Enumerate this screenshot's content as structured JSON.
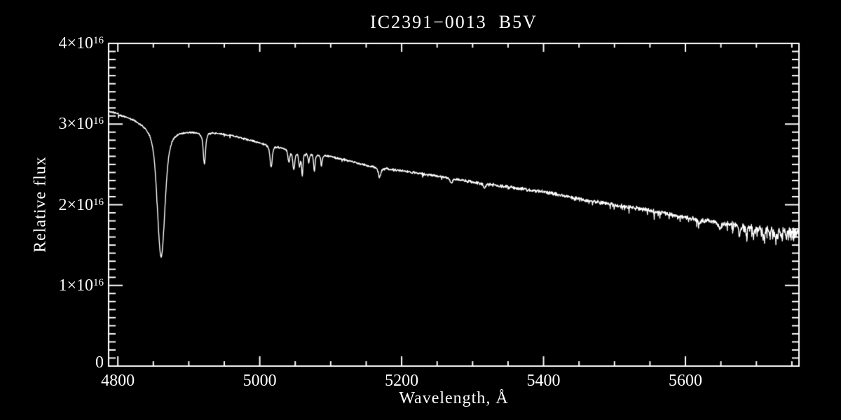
{
  "window": {
    "background": "#000000",
    "foreground": "#ffffff"
  },
  "chart_data": {
    "type": "line",
    "title": "IC2391−0013  B5V",
    "xlabel": "Wavelength, Å",
    "ylabel": "Relative flux",
    "legend": null,
    "grid": false,
    "background": "#000000",
    "line_color": "#ffffff",
    "axis_color": "#ffffff",
    "x_range": [
      4787,
      5760
    ],
    "y_range": [
      0,
      4e+16
    ],
    "x_major_ticks": [
      4800,
      5000,
      5200,
      5400,
      5600
    ],
    "x_tick_labels": [
      "4800",
      "5000",
      "5200",
      "5400",
      "5600"
    ],
    "x_minor_tick_step": 50,
    "y_major_tick_step": 1e+16,
    "y_minor_tick_step": 1000000000000000.0,
    "y_tick_labels": [
      {
        "value": 4e+16,
        "mantissa": "4×10",
        "exponent": "16"
      },
      {
        "value": 3e+16,
        "mantissa": "3×10",
        "exponent": "16"
      },
      {
        "value": 2e+16,
        "mantissa": "2×10",
        "exponent": "16"
      },
      {
        "value": 1e+16,
        "mantissa": "1×10",
        "exponent": "16"
      },
      {
        "value": 0,
        "mantissa": "0",
        "exponent": ""
      }
    ],
    "flux_scale": 1e+16,
    "sampled_points": [
      [
        4790,
        3.15
      ],
      [
        4820,
        3.07
      ],
      [
        4841,
        2.86
      ],
      [
        4851,
        2.43
      ],
      [
        4861,
        1.35
      ],
      [
        4871,
        2.45
      ],
      [
        4886,
        2.87
      ],
      [
        4900,
        2.93
      ],
      [
        4922,
        2.52
      ],
      [
        4950,
        2.87
      ],
      [
        5000,
        2.77
      ],
      [
        5016,
        2.48
      ],
      [
        5048,
        2.44
      ],
      [
        5060,
        2.38
      ],
      [
        5100,
        2.6
      ],
      [
        5169,
        2.38
      ],
      [
        5200,
        2.42
      ],
      [
        5300,
        2.28
      ],
      [
        5400,
        2.16
      ],
      [
        5460,
        2.05
      ],
      [
        5500,
        2.0
      ],
      [
        5600,
        1.84
      ],
      [
        5676,
        1.62
      ],
      [
        5700,
        1.72
      ],
      [
        5760,
        1.69
      ]
    ],
    "series": [
      {
        "name": "spectrum",
        "continuum": [
          [
            4787,
            3.16
          ],
          [
            4800,
            3.13
          ],
          [
            4815,
            3.1
          ],
          [
            4840,
            3.03
          ],
          [
            4870,
            2.97
          ],
          [
            4900,
            2.93
          ],
          [
            4930,
            2.9
          ],
          [
            4960,
            2.86
          ],
          [
            5000,
            2.77
          ],
          [
            5050,
            2.68
          ],
          [
            5100,
            2.6
          ],
          [
            5150,
            2.49
          ],
          [
            5200,
            2.42
          ],
          [
            5250,
            2.36
          ],
          [
            5300,
            2.28
          ],
          [
            5350,
            2.22
          ],
          [
            5400,
            2.16
          ],
          [
            5450,
            2.07
          ],
          [
            5500,
            2.0
          ],
          [
            5550,
            1.93
          ],
          [
            5600,
            1.84
          ],
          [
            5650,
            1.78
          ],
          [
            5700,
            1.73
          ],
          [
            5760,
            1.69
          ]
        ],
        "absorption_lines": [
          {
            "center": 4861,
            "depth": 1.63,
            "sigma": 5.0,
            "gamma": 8.0
          },
          {
            "center": 4922,
            "depth": 0.4,
            "sigma": 1.4,
            "gamma": 2.5
          },
          {
            "center": 5016,
            "depth": 0.27,
            "sigma": 1.4,
            "gamma": 2.5
          },
          {
            "center": 5041,
            "depth": 0.16,
            "sigma": 1.1,
            "gamma": 2.0
          },
          {
            "center": 5048,
            "depth": 0.24,
            "sigma": 1.2,
            "gamma": 2.2
          },
          {
            "center": 5056,
            "depth": 0.17,
            "sigma": 1.0,
            "gamma": 1.8
          },
          {
            "center": 5060,
            "depth": 0.28,
            "sigma": 0.9,
            "gamma": 1.6
          },
          {
            "center": 5069,
            "depth": 0.12,
            "sigma": 0.8,
            "gamma": 1.4
          },
          {
            "center": 5077,
            "depth": 0.22,
            "sigma": 0.9,
            "gamma": 1.5
          },
          {
            "center": 5087,
            "depth": 0.14,
            "sigma": 0.8,
            "gamma": 1.4
          },
          {
            "center": 5169,
            "depth": 0.12,
            "sigma": 1.6,
            "gamma": 3.0
          },
          {
            "center": 5270,
            "depth": 0.06,
            "sigma": 1.4,
            "gamma": 2.5
          },
          {
            "center": 5317,
            "depth": 0.05,
            "sigma": 1.4,
            "gamma": 2.5
          },
          {
            "center": 5620,
            "depth": 0.05,
            "sigma": 1.4,
            "gamma": 2.5
          },
          {
            "center": 5648,
            "depth": 0.07,
            "sigma": 1.8,
            "gamma": 3.0
          },
          {
            "center": 5676,
            "depth": 0.15,
            "sigma": 1.0,
            "gamma": 1.6
          },
          {
            "center": 5686,
            "depth": 0.13,
            "sigma": 0.9,
            "gamma": 1.5
          },
          {
            "center": 5696,
            "depth": 0.1,
            "sigma": 0.9,
            "gamma": 1.5
          },
          {
            "center": 5711,
            "depth": 0.1,
            "sigma": 0.9,
            "gamma": 1.5
          },
          {
            "center": 5719,
            "depth": 0.08,
            "sigma": 0.8,
            "gamma": 1.4
          },
          {
            "center": 5727,
            "depth": 0.11,
            "sigma": 0.9,
            "gamma": 1.5
          },
          {
            "center": 5735,
            "depth": 0.1,
            "sigma": 0.8,
            "gamma": 1.4
          },
          {
            "center": 5742,
            "depth": 0.12,
            "sigma": 0.9,
            "gamma": 1.5
          }
        ],
        "profile_gauss_weight": 0.5,
        "noise": {
          "seed": 11,
          "base_amp": 0.013,
          "red_amp": 0.03,
          "spike_base_prob": 0.02,
          "spike_mid_prob": 0.1,
          "spike_mid_start": 5250,
          "spike_red_prob": 0.35,
          "spike_red_start": 5640,
          "spike_depth_base": 0.04,
          "spike_depth_red": 0.11,
          "spike_depth_red_start": 5380
        }
      }
    ]
  }
}
